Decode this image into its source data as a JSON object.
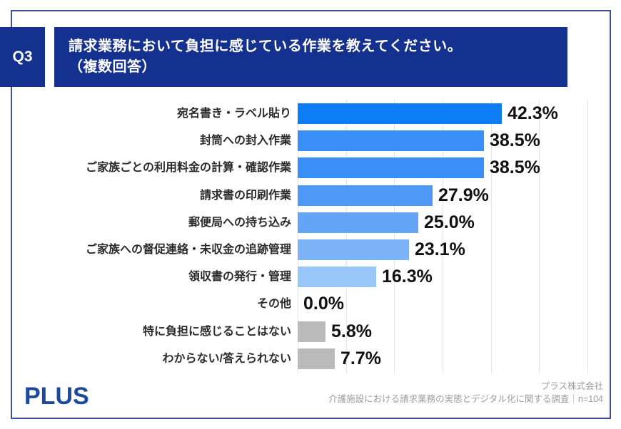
{
  "header": {
    "question_number": "Q3",
    "title_line1": "請求業務において負担に感じている作業を教えてください。",
    "title_line2": "（複数回答）"
  },
  "chart_data": {
    "type": "bar",
    "orientation": "horizontal",
    "unit": "%",
    "categories": [
      "宛名書き・ラベル貼り",
      "封筒への封入作業",
      "ご家族ごとの利用料金の計算・確認作業",
      "請求書の印刷作業",
      "郵便局への持ち込み",
      "ご家族への督促連絡・未収金の追跡管理",
      "領収書の発行・管理",
      "その他",
      "特に負担に感じることはない",
      "わからない/答えられない"
    ],
    "values": [
      42.3,
      38.5,
      38.5,
      27.9,
      25.0,
      23.1,
      16.3,
      0.0,
      5.8,
      7.7
    ],
    "value_labels": [
      "42.3%",
      "38.5%",
      "38.5%",
      "27.9%",
      "25.0%",
      "23.1%",
      "16.3%",
      "0.0%",
      "5.8%",
      "7.7%"
    ],
    "bar_colors": [
      "#0d7df5",
      "#3a8ef7",
      "#3a8ef7",
      "#4e98f6",
      "#63a4f7",
      "#7cb3f8",
      "#9ac7fa",
      "#9ac7fa",
      "#bababa",
      "#bababa"
    ],
    "xlim": [
      0,
      60
    ],
    "gridline_interval": 10,
    "grid": true,
    "title": "請求業務において負担に感じている作業を教えてください。（複数回答）",
    "xlabel": "",
    "ylabel": ""
  },
  "footer": {
    "logo": "PLUS",
    "source_line1": "プラス株式会社",
    "source_line2": "介護施設における請求業務の実態とデジタル化に関する調査｜n=104"
  },
  "colors": {
    "navy_box": "#15318f",
    "frame_border": "#3f4f9a",
    "logo_navy": "#1b4a9c",
    "gridline": "#e5e5e5",
    "category_text": "#2b2b2b",
    "value_text": "#111111",
    "source_text": "#9b9b9b"
  }
}
